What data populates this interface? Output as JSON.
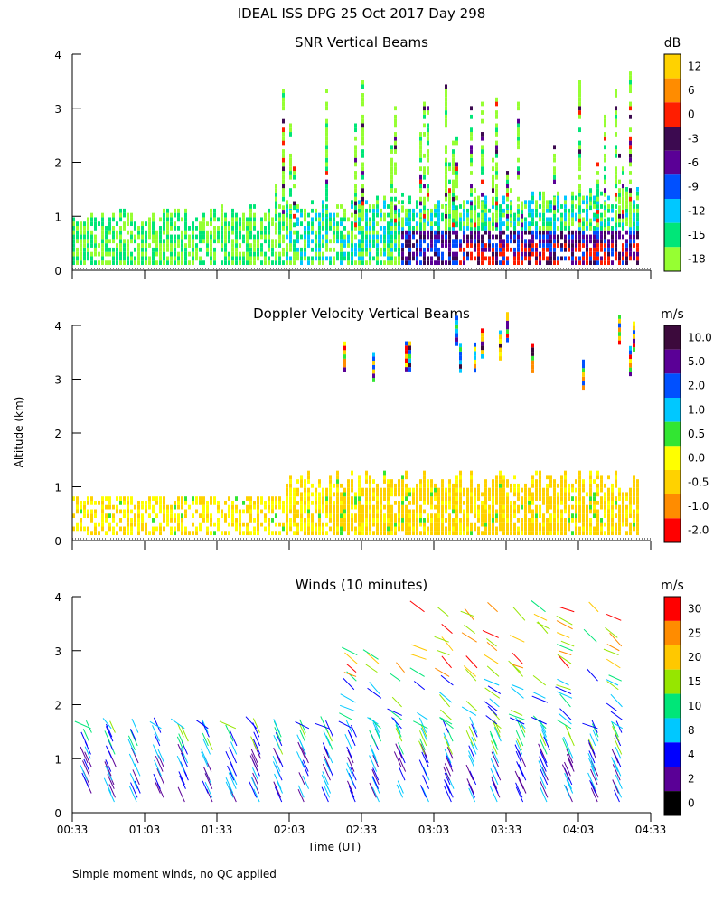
{
  "page_title": "IDEAL ISS DPG  25 Oct 2017 Day 298",
  "footer_note": "Simple moment winds, no QC applied",
  "chart_data": [
    {
      "type": "heatmap",
      "title": "SNR Vertical Beams",
      "ylabel": "Altitude (km)",
      "ylim": [
        0,
        4
      ],
      "yticks": [
        "0",
        "1",
        "2",
        "3",
        "4"
      ],
      "x_range_hours": [
        0.55,
        4.55
      ],
      "colorbar": {
        "unit": "dB",
        "tick_labels": [
          "12",
          "6",
          "0",
          "-3",
          "-6",
          "-9",
          "-12",
          "-15",
          "-18"
        ],
        "colors": [
          "#ffd200",
          "#ff8c00",
          "#ff1e00",
          "#3c0a50",
          "#5a0096",
          "#0050ff",
          "#00c8ff",
          "#00e678",
          "#96ff32"
        ]
      }
    },
    {
      "type": "heatmap",
      "title": "Doppler Velocity Vertical Beams",
      "ylabel": "Altitude (km)",
      "ylim": [
        0,
        4
      ],
      "yticks": [
        "0",
        "1",
        "2",
        "3",
        "4"
      ],
      "x_range_hours": [
        0.55,
        4.55
      ],
      "colorbar": {
        "unit": "m/s",
        "tick_labels": [
          "10.0",
          "5.0",
          "2.0",
          "1.0",
          "0.5",
          "0.0",
          "-0.5",
          "-1.0",
          "-2.0"
        ],
        "colors": [
          "#3c0a3c",
          "#5a0096",
          "#0050ff",
          "#00c8ff",
          "#32e632",
          "#ffff00",
          "#ffd200",
          "#ff8c00",
          "#ff0000"
        ]
      }
    },
    {
      "type": "scatter",
      "title": "Winds (10 minutes)",
      "xlabel": "Time (UT)",
      "ylabel": "Altitude (km)",
      "ylim": [
        0,
        4
      ],
      "yticks": [
        "0",
        "1",
        "2",
        "3",
        "4"
      ],
      "x_range_hours": [
        0.55,
        4.55
      ],
      "xticks": [
        "00:33",
        "01:03",
        "01:33",
        "02:03",
        "02:33",
        "03:03",
        "03:33",
        "04:03",
        "04:33"
      ],
      "colorbar": {
        "unit": "m/s",
        "tick_labels": [
          "30",
          "25",
          "20",
          "15",
          "10",
          "8",
          "4",
          "2",
          "0"
        ],
        "colors": [
          "#ff0000",
          "#ff8c00",
          "#ffc800",
          "#96e600",
          "#00e678",
          "#00c8ff",
          "#0000ff",
          "#5a0096",
          "#000000"
        ]
      }
    }
  ]
}
